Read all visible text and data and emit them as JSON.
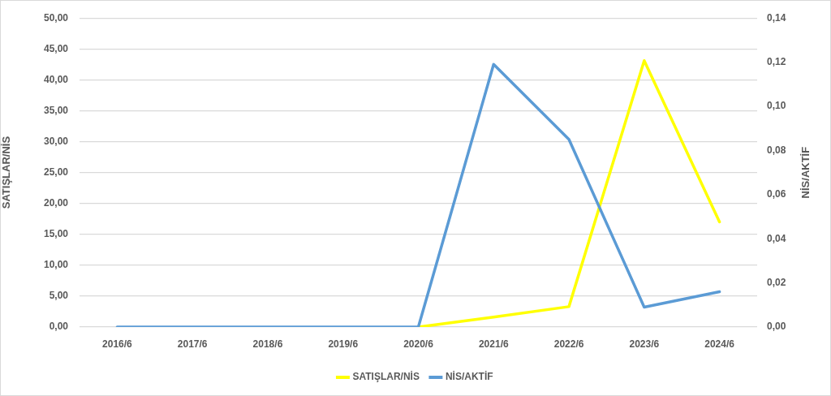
{
  "chart_data": {
    "type": "line",
    "categories": [
      "2016/6",
      "2017/6",
      "2018/6",
      "2019/6",
      "2020/6",
      "2021/6",
      "2022/6",
      "2023/6",
      "2024/6"
    ],
    "series": [
      {
        "name": "SATIŞLAR/NİS",
        "color": "#ffff00",
        "values": [
          null,
          null,
          null,
          null,
          0,
          1.6,
          3.3,
          43.1,
          17
        ]
      },
      {
        "name": "NİS/AKTİF",
        "color": "#5b9bd5",
        "axis": "y2",
        "values": [
          0,
          0,
          0,
          0,
          0,
          0.119,
          0.085,
          0.009,
          0.016
        ]
      }
    ],
    "ylabel": "SATIŞLAR/NİS",
    "y2label": "NİS/AKTİF",
    "ylim": [
      0,
      50
    ],
    "yticks": [
      {
        "value": 0,
        "label": "0,00"
      },
      {
        "value": 5,
        "label": "5,00"
      },
      {
        "value": 10,
        "label": "10,00"
      },
      {
        "value": 15,
        "label": "15,00"
      },
      {
        "value": 20,
        "label": "20,00"
      },
      {
        "value": 25,
        "label": "25,00"
      },
      {
        "value": 30,
        "label": "30,00"
      },
      {
        "value": 35,
        "label": "35,00"
      },
      {
        "value": 40,
        "label": "40,00"
      },
      {
        "value": 45,
        "label": "45,00"
      },
      {
        "value": 50,
        "label": "50,00"
      }
    ],
    "y2lim": [
      0,
      0.14
    ],
    "y2ticks": [
      {
        "value": 0,
        "label": "0,00"
      },
      {
        "value": 0.02,
        "label": "0,02"
      },
      {
        "value": 0.04,
        "label": "0,04"
      },
      {
        "value": 0.06,
        "label": "0,06"
      },
      {
        "value": 0.08,
        "label": "0,08"
      },
      {
        "value": 0.1,
        "label": "0,10"
      },
      {
        "value": 0.12,
        "label": "0,12"
      },
      {
        "value": 0.14,
        "label": "0,14"
      }
    ],
    "grid": "y",
    "legend": "bottom",
    "marker": "none",
    "line_style": "solid"
  }
}
